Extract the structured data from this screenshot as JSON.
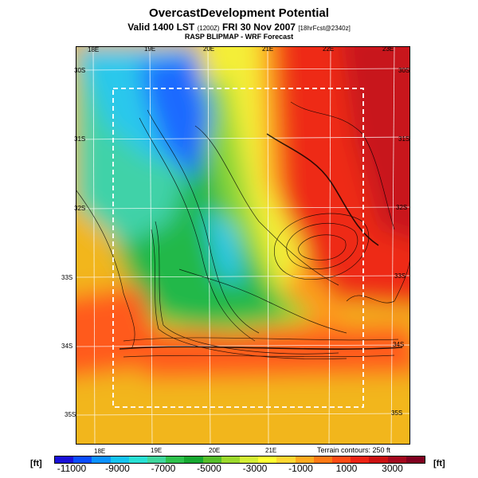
{
  "title": "OvercastDevelopment Potential",
  "subtitle": {
    "main": "Valid 1400 LST",
    "utc_note": "(1200Z)",
    "date": "FRI 30 Nov 2007",
    "forecast_note": "[18hrFcst@2340z]"
  },
  "source_line": "RASP BLIPMAP - WRF Forecast",
  "lon_labels_top": [
    "18E",
    "19E",
    "20E",
    "21E",
    "22E",
    "23E"
  ],
  "lon_labels_bottom": [
    "18E",
    "19E",
    "20E",
    "21E"
  ],
  "lat_labels_left": [
    "30S",
    "31S",
    "32S",
    "33S",
    "34S",
    "35S"
  ],
  "lat_labels_right": [
    "30S",
    "31S",
    "32S",
    "33S",
    "34S",
    "35S"
  ],
  "terrain_note": "Terrain contours: 250 ft",
  "colorbar": {
    "unit": "[ft]",
    "labels": [
      "-11000",
      "-9000",
      "-7000",
      "-5000",
      "-3000",
      "-1000",
      "1000",
      "3000"
    ],
    "colors": [
      "#1a10d8",
      "#0a4dff",
      "#0a92ff",
      "#14c4f0",
      "#29e0d4",
      "#3fd69c",
      "#2ec24c",
      "#16a830",
      "#56bf2a",
      "#9cd92c",
      "#d4ee34",
      "#ffff33",
      "#ffd732",
      "#ffaa1e",
      "#ff7a14",
      "#ff4b14",
      "#ee2314",
      "#cc1010",
      "#a4081e",
      "#800020"
    ]
  },
  "map_colors": {
    "deep_blue": "#1f6bff",
    "cyan": "#2cc8ec",
    "teal": "#3fd2a8",
    "green": "#24b84a",
    "light_green": "#8ad638",
    "yellow": "#f4ee38",
    "orange": "#ff9a1e",
    "red_orange": "#ff5a1a",
    "red": "#ee2a16",
    "dark_red": "#c8161a",
    "gold": "#f2b61c"
  }
}
